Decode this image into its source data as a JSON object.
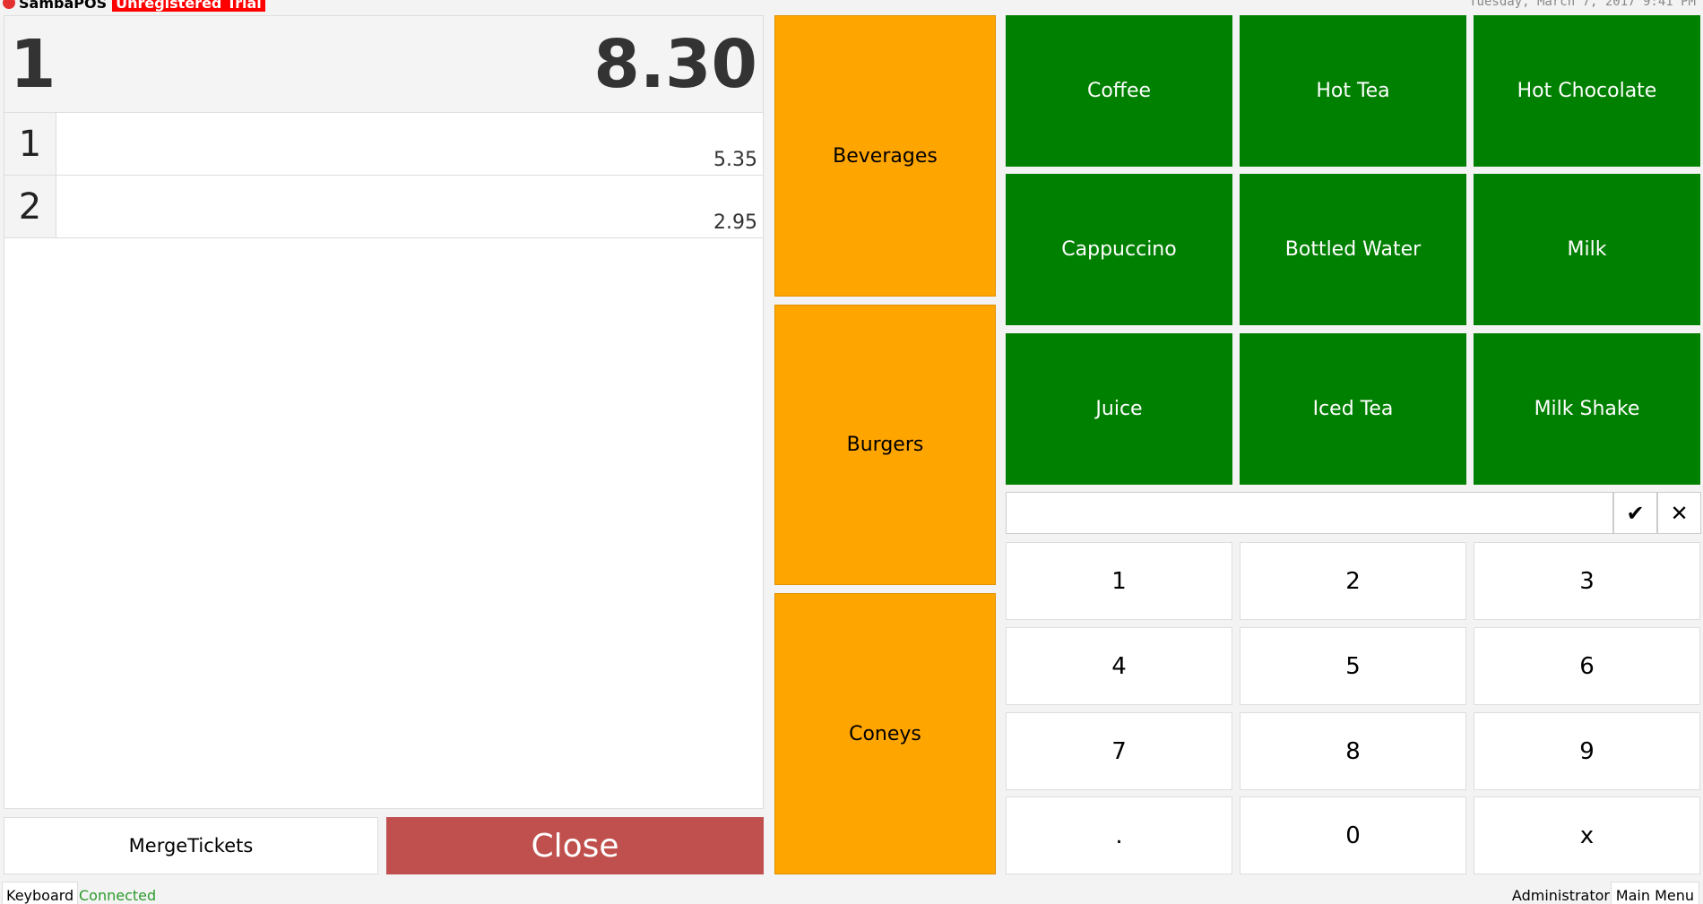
{
  "app": {
    "title": "SambaPOS",
    "trial": "Unregistered Trial",
    "datetime": "Tuesday, March 7, 2017 9:41 PM"
  },
  "ticket": {
    "number": "1",
    "total": "8.30",
    "rows": [
      {
        "num": "1",
        "amount": "5.35"
      },
      {
        "num": "2",
        "amount": "2.95"
      }
    ]
  },
  "actions": {
    "merge": "Merge\nTickets",
    "close": "Close"
  },
  "categories": [
    "Beverages",
    "Burgers",
    "Coneys"
  ],
  "products": [
    "Coffee",
    "Hot Tea",
    "Hot Chocolate",
    "Cappuccino",
    "Bottled Water",
    "Milk",
    "Juice",
    "Iced Tea",
    "Milk Shake"
  ],
  "numpad": {
    "input_value": "",
    "confirm": "✔",
    "cancel": "✕",
    "keys": [
      "1",
      "2",
      "3",
      "4",
      "5",
      "6",
      "7",
      "8",
      "9",
      ".",
      "0",
      "x"
    ]
  },
  "status": {
    "keyboard": "Keyboard",
    "connection": "Connected",
    "user": "Administrator",
    "main_menu": "Main Menu"
  },
  "colors": {
    "category": "#ffa500",
    "product": "#008000",
    "close": "#c0504d",
    "trial": "#ff0000"
  }
}
